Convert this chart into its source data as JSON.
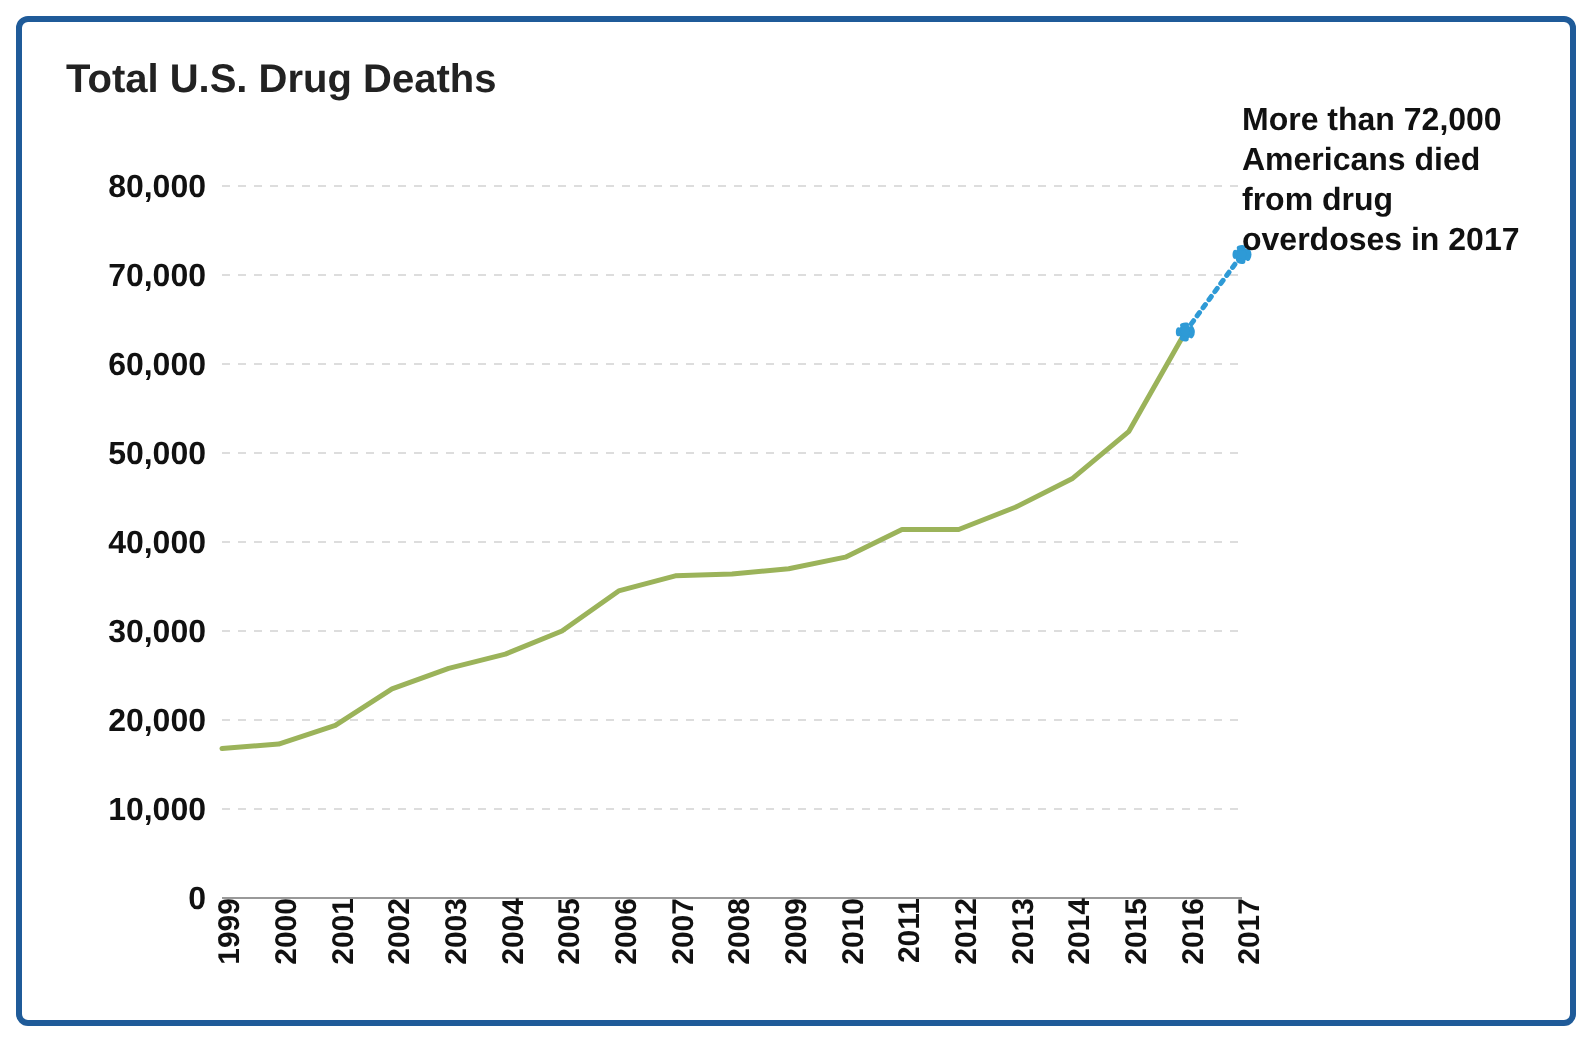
{
  "chart_data": {
    "type": "line",
    "title": "Total U.S. Drug Deaths",
    "categories": [
      "1999",
      "2000",
      "2001",
      "2002",
      "2003",
      "2004",
      "2005",
      "2006",
      "2007",
      "2008",
      "2009",
      "2010",
      "2011",
      "2012",
      "2013",
      "2014",
      "2015",
      "2016",
      "2017"
    ],
    "series": [
      {
        "color": "#9bb35a",
        "line_style": "solid",
        "marker": "none",
        "values": [
          16800,
          17300,
          19400,
          23500,
          25800,
          27400,
          30000,
          34500,
          36200,
          36400,
          37000,
          38300,
          41400,
          41400,
          43900,
          47100,
          52400,
          63600,
          null
        ]
      },
      {
        "color": "#2e9ad6",
        "line_style": "dotted",
        "marker": "circle",
        "values": [
          null,
          null,
          null,
          null,
          null,
          null,
          null,
          null,
          null,
          null,
          null,
          null,
          null,
          null,
          null,
          null,
          null,
          63600,
          72300
        ]
      }
    ],
    "ylim": [
      0,
      80000
    ],
    "yticks": [
      0,
      {
        "value": 10000,
        "label": "10,000"
      },
      {
        "value": 20000,
        "label": "20,000"
      },
      {
        "value": 30000,
        "label": "30,000"
      },
      {
        "value": 40000,
        "label": "40,000"
      },
      {
        "value": 50000,
        "label": "50,000"
      },
      {
        "value": 60000,
        "label": "60,000"
      },
      {
        "value": 70000,
        "label": "70,000"
      },
      {
        "value": 80000,
        "label": "80,000"
      }
    ],
    "grid": "y",
    "annotations": [
      "More than 72,000 Americans died from drug overdoses in 2017"
    ]
  }
}
